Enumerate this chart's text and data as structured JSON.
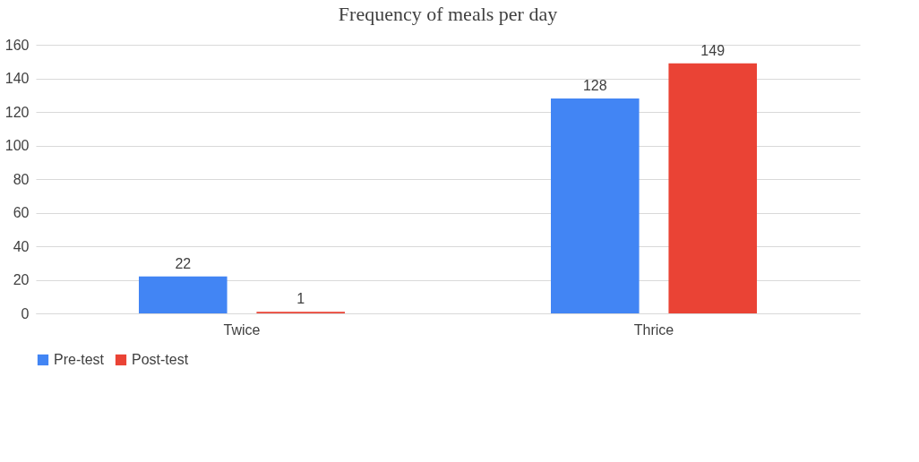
{
  "chart_data": {
    "type": "bar",
    "title": "Frequency of meals per day",
    "categories": [
      "Twice",
      "Thrice"
    ],
    "series": [
      {
        "name": "Pre-test",
        "color": "#4285f4",
        "values": [
          22,
          128
        ]
      },
      {
        "name": "Post-test",
        "color": "#ea4335",
        "values": [
          1,
          149
        ]
      }
    ],
    "ylim": [
      0,
      160
    ],
    "yticks": [
      0,
      20,
      40,
      60,
      80,
      100,
      120,
      140,
      160
    ],
    "grid": "y",
    "legend": "bottom",
    "data_labels": true
  }
}
